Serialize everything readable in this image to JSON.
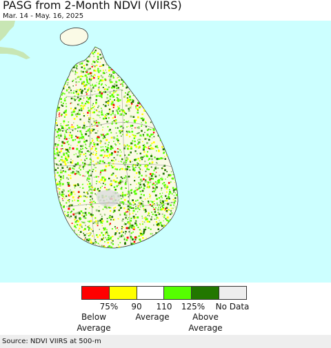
{
  "header": {
    "title": "PASG from 2-Month NDVI (VIIRS)",
    "subtitle": "Mar. 14 - May. 16, 2025"
  },
  "colors": {
    "ocean": "#ccffff",
    "land_base": "#fafae6",
    "outside_land": "#c8e6b4"
  },
  "legend": {
    "swatches": [
      {
        "color": "#ff0000"
      },
      {
        "color": "#ffff00"
      },
      {
        "color": "#ffffff"
      },
      {
        "color": "#55ff00"
      },
      {
        "color": "#227700"
      },
      {
        "color": "#eeeeee"
      }
    ],
    "ticks": [
      "75%",
      "90",
      "110",
      "125%",
      "No Data"
    ],
    "below_label": [
      "Below",
      "Average"
    ],
    "average_label": "Average",
    "above_label": [
      "Above",
      "Average"
    ]
  },
  "footer": {
    "source": "Source: NDVI VIIRS at 500-m"
  }
}
